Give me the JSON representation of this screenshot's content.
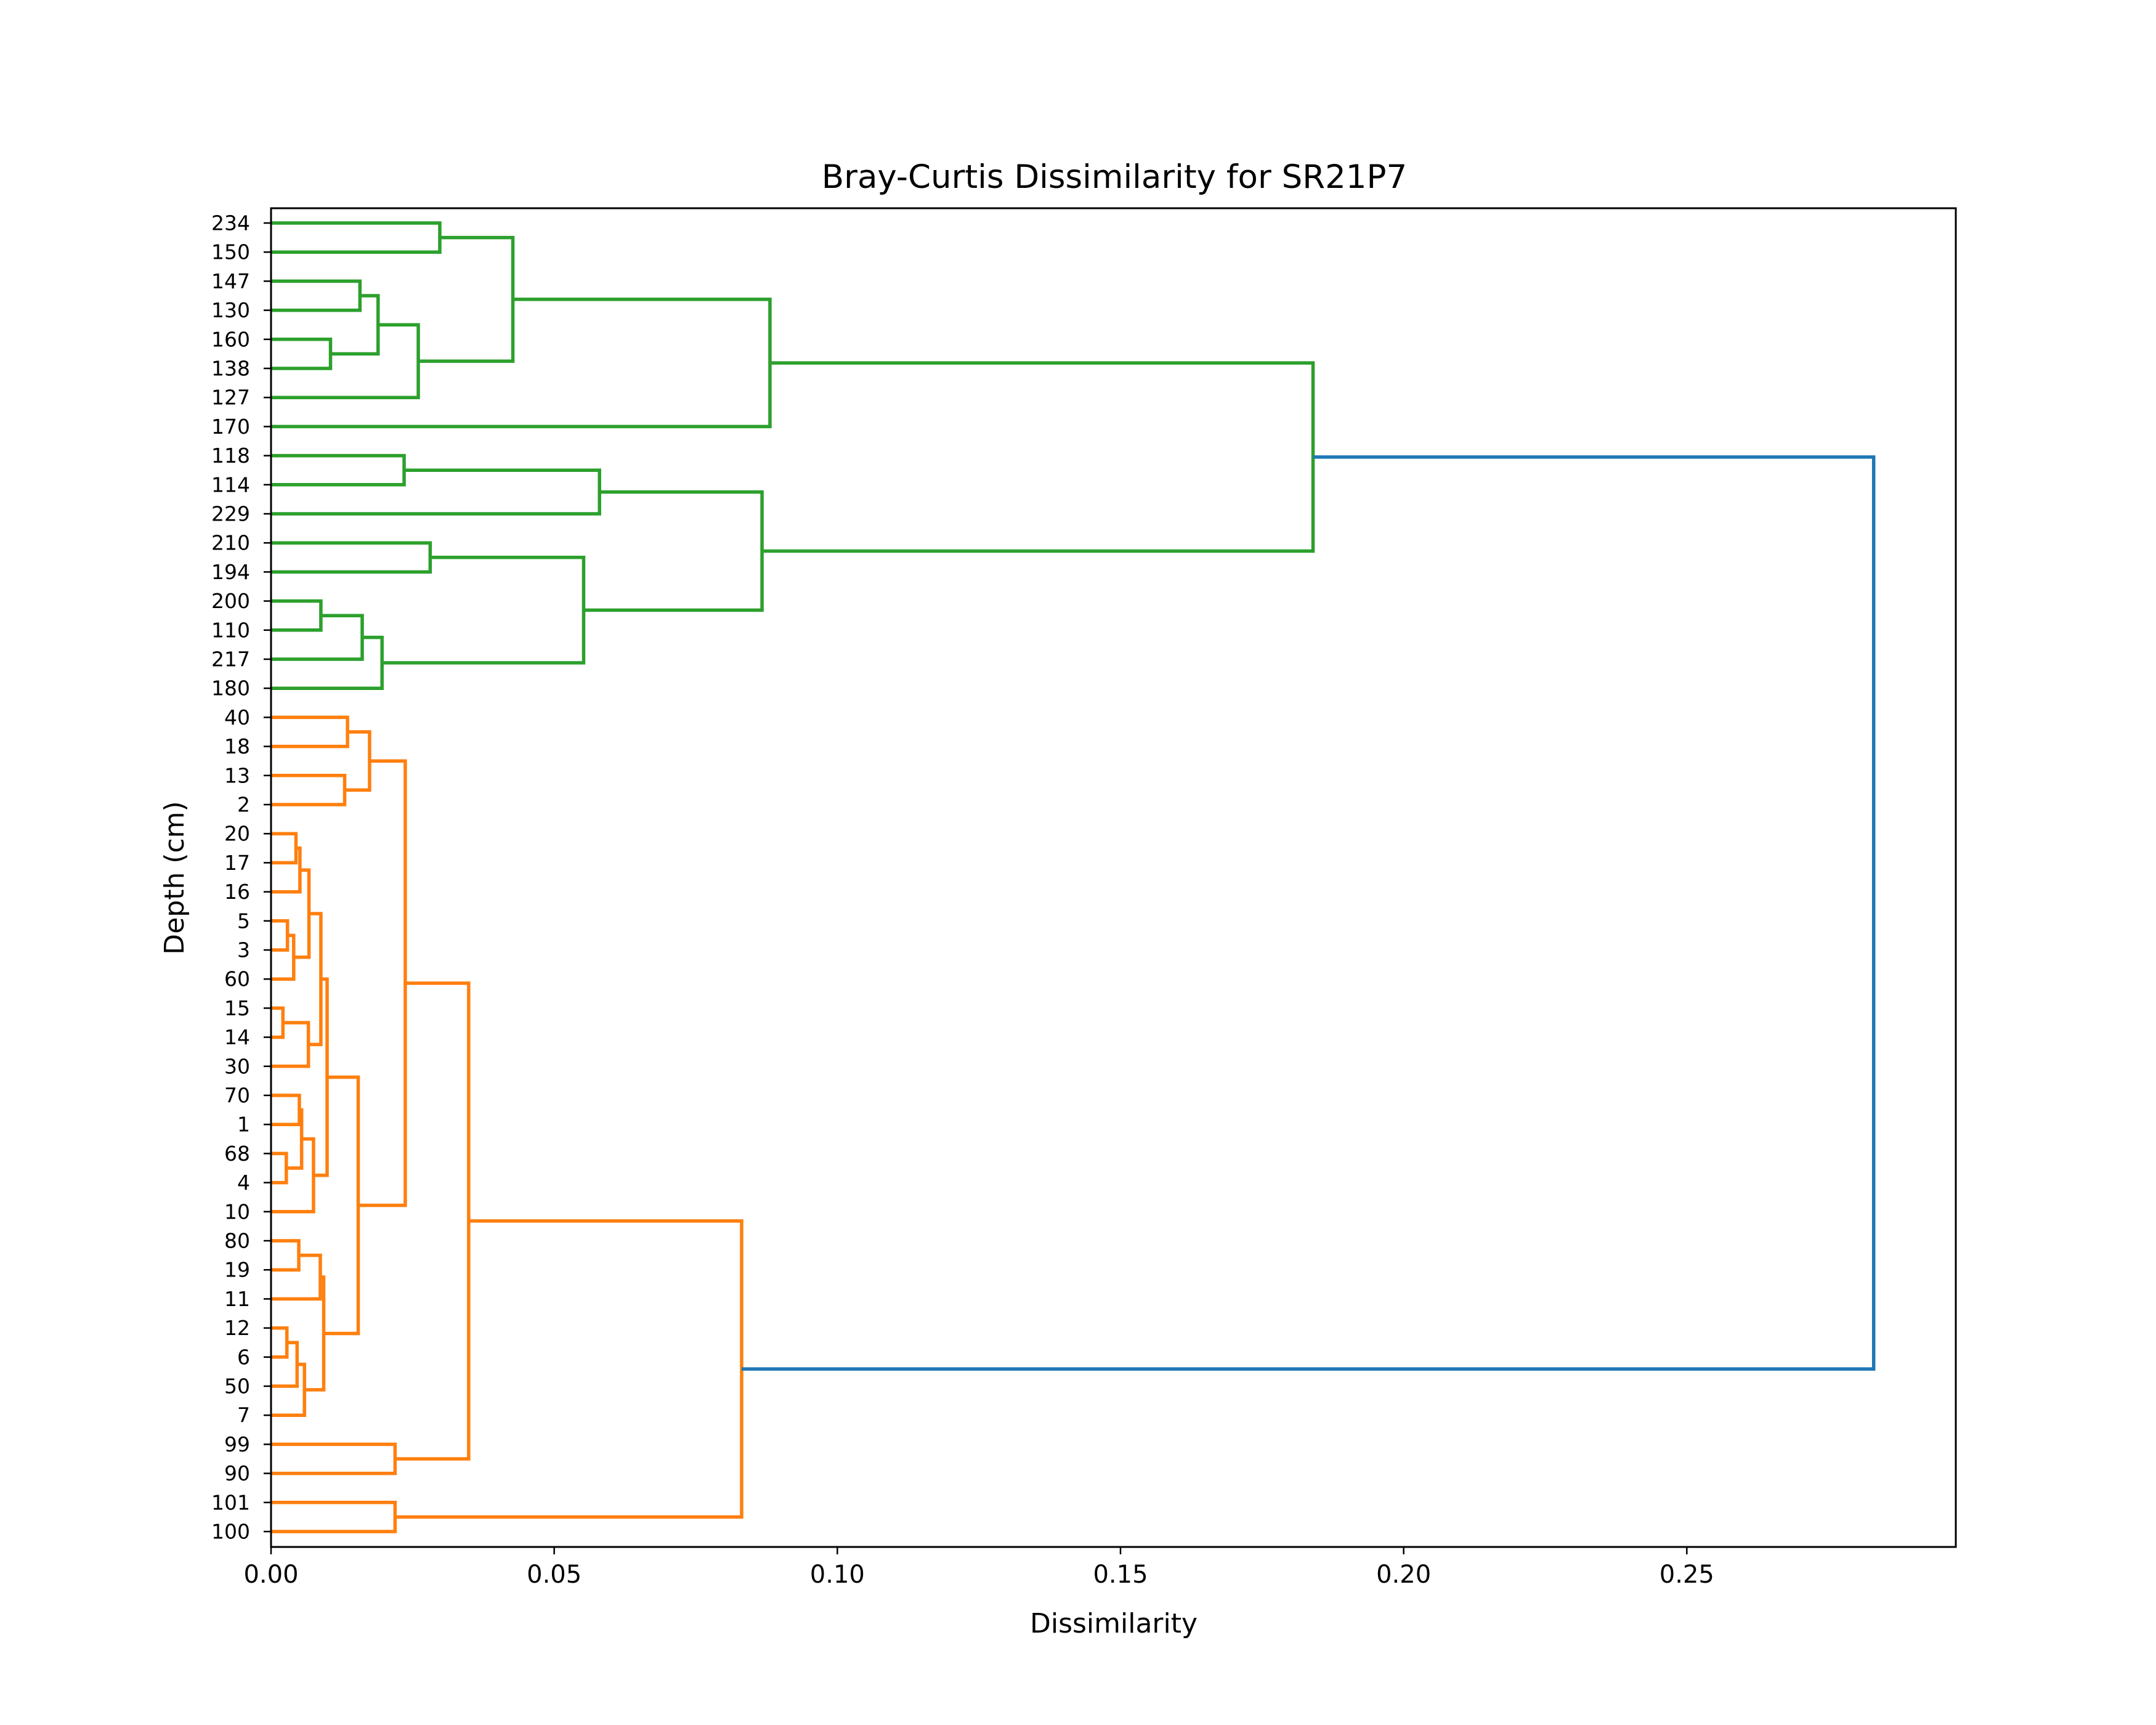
{
  "chart_data": {
    "type": "dendrogram",
    "title": "Bray-Curtis Dissimilarity for SR21P7",
    "xlabel": "Dissimilarity",
    "ylabel": "Depth (cm)",
    "xlim": [
      0,
      0.2975
    ],
    "xticks": [
      0.0,
      0.05,
      0.1,
      0.15,
      0.2,
      0.25
    ],
    "xtick_labels": [
      "0.00",
      "0.05",
      "0.10",
      "0.15",
      "0.20",
      "0.25"
    ],
    "leaves": [
      "234",
      "150",
      "147",
      "130",
      "160",
      "138",
      "127",
      "170",
      "118",
      "114",
      "229",
      "210",
      "194",
      "200",
      "110",
      "217",
      "180",
      "40",
      "18",
      "13",
      "2",
      "20",
      "17",
      "16",
      "5",
      "3",
      "60",
      "15",
      "14",
      "30",
      "70",
      "1",
      "68",
      "4",
      "10",
      "80",
      "19",
      "11",
      "12",
      "6",
      "50",
      "7",
      "99",
      "90",
      "101",
      "100"
    ],
    "colors": {
      "cluster_green": "#2ca02c",
      "cluster_orange": "#ff7f0e",
      "root_link": "#1f77b4"
    },
    "merges": [
      {
        "id": "a1",
        "left": "L0",
        "right": "L1",
        "height": 0.0298,
        "color": "cluster_green"
      },
      {
        "id": "a2",
        "left": "L2",
        "right": "L3",
        "height": 0.0157,
        "color": "cluster_green"
      },
      {
        "id": "a3",
        "left": "L4",
        "right": "L5",
        "height": 0.0105,
        "color": "cluster_green"
      },
      {
        "id": "a4",
        "left": "a2",
        "right": "a3",
        "height": 0.0189,
        "color": "cluster_green"
      },
      {
        "id": "a5",
        "left": "a4",
        "right": "L6",
        "height": 0.026,
        "color": "cluster_green"
      },
      {
        "id": "a6",
        "left": "a1",
        "right": "a5",
        "height": 0.0427,
        "color": "cluster_green"
      },
      {
        "id": "a7",
        "left": "a6",
        "right": "L7",
        "height": 0.0881,
        "color": "cluster_green"
      },
      {
        "id": "b1",
        "left": "L8",
        "right": "L9",
        "height": 0.0235,
        "color": "cluster_green"
      },
      {
        "id": "b2",
        "left": "b1",
        "right": "L10",
        "height": 0.058,
        "color": "cluster_green"
      },
      {
        "id": "b3",
        "left": "L11",
        "right": "L12",
        "height": 0.0281,
        "color": "cluster_green"
      },
      {
        "id": "b4",
        "left": "L13",
        "right": "L14",
        "height": 0.0088,
        "color": "cluster_green"
      },
      {
        "id": "b5",
        "left": "b4",
        "right": "L15",
        "height": 0.0161,
        "color": "cluster_green"
      },
      {
        "id": "b6",
        "left": "b5",
        "right": "L16",
        "height": 0.0196,
        "color": "cluster_green"
      },
      {
        "id": "b7",
        "left": "b3",
        "right": "b6",
        "height": 0.0552,
        "color": "cluster_green"
      },
      {
        "id": "b8",
        "left": "b2",
        "right": "b7",
        "height": 0.0867,
        "color": "cluster_green"
      },
      {
        "id": "g1",
        "left": "a7",
        "right": "b8",
        "height": 0.184,
        "color": "cluster_green"
      },
      {
        "id": "c1",
        "left": "L17",
        "right": "L18",
        "height": 0.0135,
        "color": "cluster_orange"
      },
      {
        "id": "c2",
        "left": "L19",
        "right": "L20",
        "height": 0.013,
        "color": "cluster_orange"
      },
      {
        "id": "c3",
        "left": "c1",
        "right": "c2",
        "height": 0.0174,
        "color": "cluster_orange"
      },
      {
        "id": "d1",
        "left": "L21",
        "right": "L22",
        "height": 0.0044,
        "color": "cluster_orange"
      },
      {
        "id": "d2",
        "left": "d1",
        "right": "L23",
        "height": 0.0051,
        "color": "cluster_orange"
      },
      {
        "id": "d3",
        "left": "L24",
        "right": "L25",
        "height": 0.0029,
        "color": "cluster_orange"
      },
      {
        "id": "d4",
        "left": "d3",
        "right": "L26",
        "height": 0.004,
        "color": "cluster_orange"
      },
      {
        "id": "d5",
        "left": "d2",
        "right": "d4",
        "height": 0.0067,
        "color": "cluster_orange"
      },
      {
        "id": "d6",
        "left": "L27",
        "right": "L28",
        "height": 0.0021,
        "color": "cluster_orange"
      },
      {
        "id": "d7",
        "left": "d6",
        "right": "L29",
        "height": 0.0066,
        "color": "cluster_orange"
      },
      {
        "id": "d8",
        "left": "d5",
        "right": "d7",
        "height": 0.0088,
        "color": "cluster_orange"
      },
      {
        "id": "e1",
        "left": "L30",
        "right": "L31",
        "height": 0.005,
        "color": "cluster_orange"
      },
      {
        "id": "e2",
        "left": "L32",
        "right": "L33",
        "height": 0.0027,
        "color": "cluster_orange"
      },
      {
        "id": "e3",
        "left": "e1",
        "right": "e2",
        "height": 0.0054,
        "color": "cluster_orange"
      },
      {
        "id": "e4",
        "left": "e3",
        "right": "L34",
        "height": 0.0075,
        "color": "cluster_orange"
      },
      {
        "id": "f0",
        "left": "d8",
        "right": "e4",
        "height": 0.0099,
        "color": "cluster_orange"
      },
      {
        "id": "h1",
        "left": "L35",
        "right": "L36",
        "height": 0.0049,
        "color": "cluster_orange"
      },
      {
        "id": "h2",
        "left": "h1",
        "right": "L37",
        "height": 0.0087,
        "color": "cluster_orange"
      },
      {
        "id": "h3",
        "left": "L38",
        "right": "L39",
        "height": 0.0028,
        "color": "cluster_orange"
      },
      {
        "id": "h4",
        "left": "h3",
        "right": "L40",
        "height": 0.0046,
        "color": "cluster_orange"
      },
      {
        "id": "h5",
        "left": "h4",
        "right": "L41",
        "height": 0.0059,
        "color": "cluster_orange"
      },
      {
        "id": "h6",
        "left": "h2",
        "right": "h5",
        "height": 0.0093,
        "color": "cluster_orange"
      },
      {
        "id": "f1",
        "left": "f0",
        "right": "h6",
        "height": 0.0154,
        "color": "cluster_orange"
      },
      {
        "id": "f2",
        "left": "c3",
        "right": "f1",
        "height": 0.0237,
        "color": "cluster_orange"
      },
      {
        "id": "i1",
        "left": "L42",
        "right": "L43",
        "height": 0.0219,
        "color": "cluster_orange"
      },
      {
        "id": "f3",
        "left": "f2",
        "right": "i1",
        "height": 0.0349,
        "color": "cluster_orange"
      },
      {
        "id": "j1",
        "left": "L44",
        "right": "L45",
        "height": 0.0219,
        "color": "cluster_orange"
      },
      {
        "id": "o1",
        "left": "f3",
        "right": "j1",
        "height": 0.0831,
        "color": "cluster_orange"
      },
      {
        "id": "root",
        "left": "g1",
        "right": "o1",
        "height": 0.283,
        "color": "root_link"
      }
    ]
  }
}
